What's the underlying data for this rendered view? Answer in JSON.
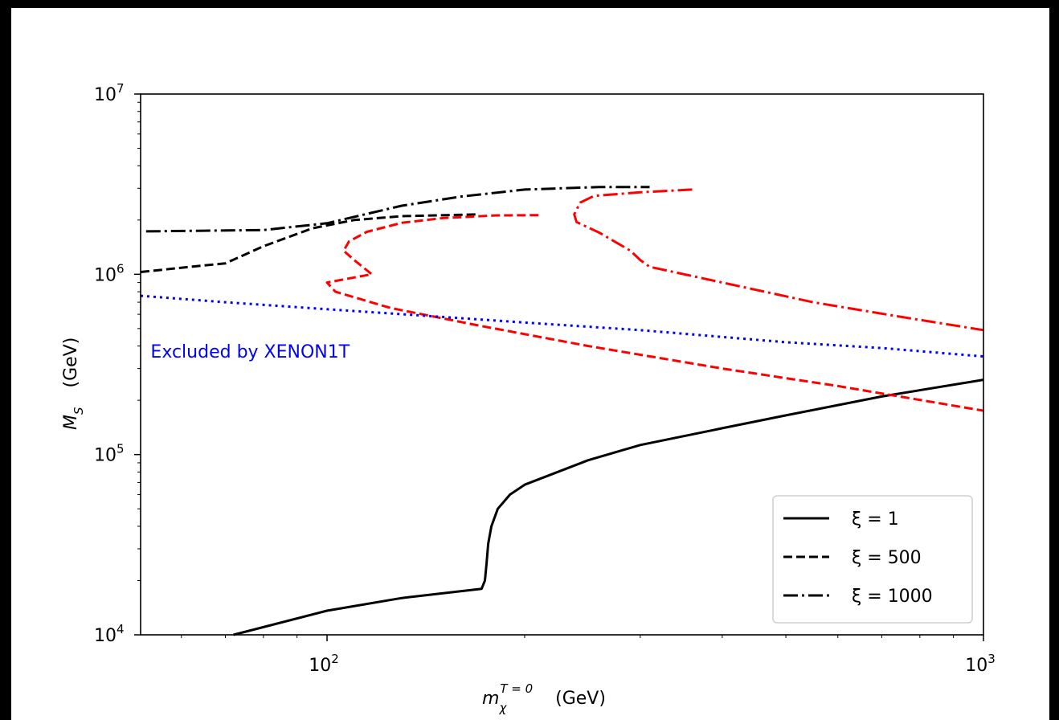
{
  "chart_data": {
    "type": "line",
    "title": "",
    "xscale": "log",
    "yscale": "log",
    "xlim": [
      52,
      1000
    ],
    "ylim": [
      10000,
      10000000
    ],
    "xlabel_main": "m",
    "xlabel_sub": "χ",
    "xlabel_sup": "T = 0",
    "xlabel_unit": "(GeV)",
    "ylabel_main": "M",
    "ylabel_sub": "S",
    "ylabel_unit": "(GeV)",
    "x_major_ticks": [
      {
        "value": 100,
        "base": "10",
        "exp": "2"
      },
      {
        "value": 1000,
        "base": "10",
        "exp": "3"
      }
    ],
    "y_major_ticks": [
      {
        "value": 10000,
        "base": "10",
        "exp": "4"
      },
      {
        "value": 100000,
        "base": "10",
        "exp": "5"
      },
      {
        "value": 1000000,
        "base": "10",
        "exp": "6"
      },
      {
        "value": 10000000,
        "base": "10",
        "exp": "7"
      }
    ],
    "legend_position": "lower right",
    "legend": [
      {
        "label": "ξ = 1",
        "style": "solid"
      },
      {
        "label": "ξ = 500",
        "style": "dashed"
      },
      {
        "label": "ξ = 1000",
        "style": "dashdot"
      }
    ],
    "annotation": {
      "text": "Excluded by XENON1T",
      "color": "#0000ff",
      "x": 92,
      "y": 450000
    },
    "series": [
      {
        "style": "solid",
        "color": "#000000",
        "points": [
          [
            72,
            10000
          ],
          [
            100,
            13600
          ],
          [
            130,
            16000
          ],
          [
            172,
            18000
          ],
          [
            174,
            20000
          ],
          [
            175,
            25000
          ],
          [
            176,
            32000
          ],
          [
            178,
            40000
          ],
          [
            182,
            50000
          ],
          [
            190,
            60000
          ],
          [
            200,
            68000
          ],
          [
            250,
            93000
          ],
          [
            300,
            113000
          ],
          [
            400,
            140000
          ],
          [
            500,
            165000
          ],
          [
            700,
            210000
          ],
          [
            1000,
            260000
          ]
        ]
      },
      {
        "style": "dashed",
        "color": "#000000",
        "points": [
          [
            52,
            1030000
          ],
          [
            62,
            1100000
          ],
          [
            70,
            1150000
          ],
          [
            80,
            1430000
          ],
          [
            95,
            1800000
          ],
          [
            110,
            2000000
          ],
          [
            130,
            2100000
          ],
          [
            170,
            2150000
          ]
        ]
      },
      {
        "style": "dashdot",
        "color": "#000000",
        "points": [
          [
            53,
            1730000
          ],
          [
            80,
            1760000
          ],
          [
            100,
            1920000
          ],
          [
            130,
            2400000
          ],
          [
            160,
            2700000
          ],
          [
            200,
            2950000
          ],
          [
            260,
            3050000
          ],
          [
            310,
            3050000
          ]
        ]
      },
      {
        "style": "dashed",
        "color": "#ff0000",
        "points": [
          [
            210,
            2130000
          ],
          [
            180,
            2120000
          ],
          [
            150,
            2050000
          ],
          [
            130,
            1930000
          ],
          [
            115,
            1720000
          ],
          [
            108,
            1520000
          ],
          [
            106,
            1350000
          ],
          [
            110,
            1200000
          ],
          [
            117,
            1000000
          ],
          [
            110,
            960000
          ],
          [
            100,
            900000
          ],
          [
            103,
            800000
          ],
          [
            125,
            650000
          ],
          [
            170,
            520000
          ],
          [
            250,
            400000
          ],
          [
            400,
            300000
          ],
          [
            600,
            240000
          ],
          [
            1000,
            175000
          ]
        ]
      },
      {
        "style": "dashdot",
        "color": "#ff0000",
        "points": [
          [
            360,
            2950000
          ],
          [
            300,
            2850000
          ],
          [
            255,
            2720000
          ],
          [
            243,
            2500000
          ],
          [
            238,
            2150000
          ],
          [
            240,
            1950000
          ],
          [
            260,
            1700000
          ],
          [
            290,
            1350000
          ],
          [
            300,
            1200000
          ],
          [
            310,
            1100000
          ],
          [
            400,
            900000
          ],
          [
            550,
            700000
          ],
          [
            750,
            580000
          ],
          [
            1000,
            490000
          ]
        ]
      },
      {
        "style": "dotted",
        "color": "#0000ff",
        "points": [
          [
            52,
            760000
          ],
          [
            70,
            700000
          ],
          [
            100,
            640000
          ],
          [
            150,
            580000
          ],
          [
            200,
            540000
          ],
          [
            300,
            490000
          ],
          [
            500,
            420000
          ],
          [
            700,
            390000
          ],
          [
            1000,
            350000
          ]
        ]
      }
    ]
  }
}
